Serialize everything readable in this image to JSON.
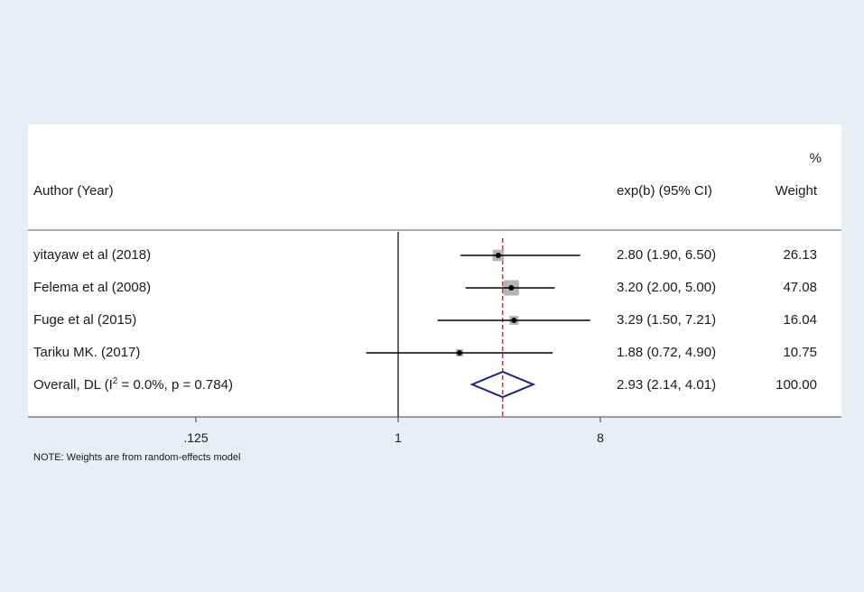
{
  "chart_data": {
    "type": "forest",
    "header": {
      "study_col": "Author (Year)",
      "effect_col": "exp(b) (95% CI)",
      "weight_col_top": "%",
      "weight_col": "Weight"
    },
    "studies": [
      {
        "label": "yitayaw et al (2018)",
        "est": 2.8,
        "lo": 1.9,
        "hi": 6.5,
        "ci_text": "2.80 (1.90, 6.50)",
        "weight": 26.13,
        "weight_text": "26.13"
      },
      {
        "label": "Felema et al (2008)",
        "est": 3.2,
        "lo": 2.0,
        "hi": 5.0,
        "ci_text": "3.20 (2.00, 5.00)",
        "weight": 47.08,
        "weight_text": "47.08"
      },
      {
        "label": "Fuge et al (2015)",
        "est": 3.29,
        "lo": 1.5,
        "hi": 7.21,
        "ci_text": "3.29 (1.50, 7.21)",
        "weight": 16.04,
        "weight_text": "16.04"
      },
      {
        "label": "Tariku MK. (2017)",
        "est": 1.88,
        "lo": 0.72,
        "hi": 4.9,
        "ci_text": "1.88 (0.72, 4.90)",
        "weight": 10.75,
        "weight_text": "10.75"
      }
    ],
    "overall": {
      "label_pre": "Overall, DL (I",
      "label_sup": "2",
      "label_post": " = 0.0%, p = 0.784)",
      "est": 2.93,
      "lo": 2.14,
      "hi": 4.01,
      "ci_text": "2.93 (2.14, 4.01)",
      "weight_text": "100.00"
    },
    "x_axis": {
      "scale": "log",
      "ticks": [
        0.125,
        1,
        8
      ],
      "tick_labels": [
        ".125",
        "1",
        "8"
      ],
      "range": [
        0.015,
        20
      ]
    },
    "null_line": 1,
    "note": "NOTE: Weights are from random-effects model",
    "colors": {
      "marker_box": "#b5b5b5",
      "ci_line": "#000000",
      "overall_line": "#8b1a1a",
      "diamond": "#1a237e",
      "background": "#e8eef4",
      "panel": "#ffffff"
    }
  }
}
